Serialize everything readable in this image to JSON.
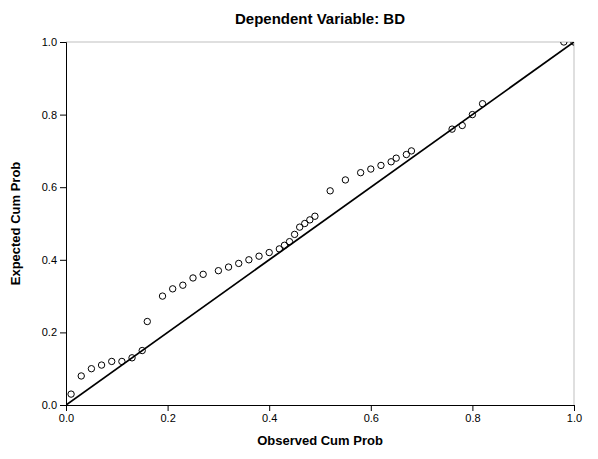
{
  "chart_data": {
    "type": "scatter",
    "title": "Dependent Variable: BD",
    "xlabel": "Observed Cum Prob",
    "ylabel": "Expected Cum Prob",
    "xlim": [
      0.0,
      1.0
    ],
    "ylim": [
      0.0,
      1.0
    ],
    "xticks": [
      {
        "value": 0.0,
        "label": "0.0"
      },
      0.2,
      0.4,
      0.6,
      0.8,
      {
        "value": 1.0,
        "label": "1.0"
      }
    ],
    "yticks": [
      {
        "value": 0.0,
        "label": "0.0"
      },
      0.2,
      0.4,
      0.6,
      0.8,
      {
        "value": 1.0,
        "label": "1.0"
      }
    ],
    "grid": false,
    "series": [
      {
        "type": "scatter",
        "marker": "circle-open",
        "color": "#000000",
        "x": [
          0.01,
          0.03,
          0.05,
          0.07,
          0.09,
          0.11,
          0.13,
          0.15,
          0.16,
          0.19,
          0.21,
          0.23,
          0.25,
          0.27,
          0.3,
          0.32,
          0.34,
          0.36,
          0.38,
          0.4,
          0.42,
          0.43,
          0.44,
          0.45,
          0.46,
          0.47,
          0.48,
          0.49,
          0.52,
          0.55,
          0.58,
          0.6,
          0.62,
          0.64,
          0.65,
          0.67,
          0.68,
          0.76,
          0.78,
          0.8,
          0.82,
          0.98,
          1.0
        ],
        "values": [
          0.03,
          0.08,
          0.1,
          0.11,
          0.12,
          0.12,
          0.13,
          0.15,
          0.23,
          0.3,
          0.32,
          0.33,
          0.35,
          0.36,
          0.37,
          0.38,
          0.39,
          0.4,
          0.41,
          0.42,
          0.43,
          0.44,
          0.45,
          0.47,
          0.49,
          0.5,
          0.51,
          0.52,
          0.59,
          0.62,
          0.64,
          0.65,
          0.66,
          0.67,
          0.68,
          0.69,
          0.7,
          0.76,
          0.77,
          0.8,
          0.83,
          1.0,
          1.0
        ]
      },
      {
        "type": "line",
        "line_style": "solid",
        "color": "#000000",
        "x": [
          0,
          1
        ],
        "values": [
          0,
          1
        ]
      }
    ]
  }
}
